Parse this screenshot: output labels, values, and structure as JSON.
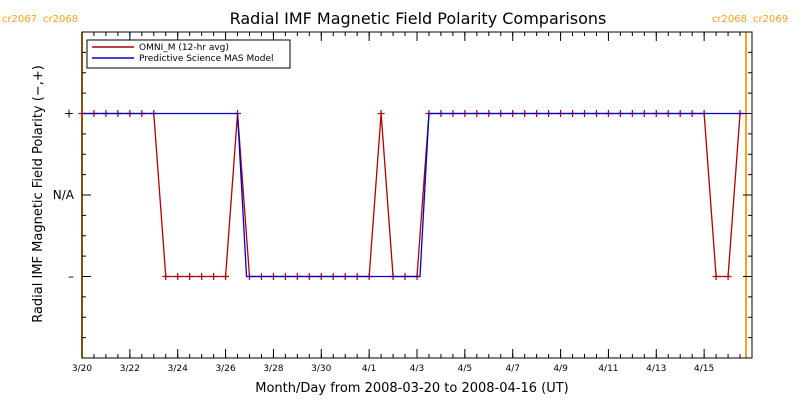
{
  "chart_data": {
    "type": "line",
    "title": "Radial IMF Magnetic Field Polarity Comparisons",
    "xlabel": "Month/Day from 2008-03-20 to 2008-04-16 (UT)",
    "ylabel": "Radial IMF Magnetic Field Polarity (−,+)",
    "xlim": [
      "2008-03-20",
      "2008-04-17"
    ],
    "x_ticks": [
      "2008-03-20",
      "2008-03-22",
      "2008-03-24",
      "2008-03-26",
      "2008-03-28",
      "2008-03-30",
      "2008-04-01",
      "2008-04-03",
      "2008-04-05",
      "2008-04-07",
      "2008-04-09",
      "2008-04-11",
      "2008-04-13",
      "2008-04-15"
    ],
    "x_tick_labels": [
      "3/20",
      "3/22",
      "3/24",
      "3/26",
      "3/28",
      "3/30",
      "4/1",
      "4/3",
      "4/5",
      "4/7",
      "4/9",
      "4/11",
      "4/13",
      "4/15"
    ],
    "y_ticks": [
      1,
      0,
      -1
    ],
    "y_tick_labels": [
      "+",
      "N/A",
      "–"
    ],
    "ylim": [
      -2,
      2
    ],
    "grid": false,
    "legend_position": "top-left",
    "carrington_markers": [
      {
        "date": "2008-03-20",
        "label_left": "cr2067",
        "label_right": "cr2068",
        "color": "#ffa020",
        "side": "left"
      },
      {
        "date": "2008-04-16T18:00",
        "label_left": "cr2068",
        "label_right": "cr2069",
        "color": "#ffa020",
        "side": "right"
      }
    ],
    "series": [
      {
        "name": "OMNI_M (12-hr avg)",
        "color": "#b00000",
        "markers": true,
        "x": [
          "2008-03-20T00:00",
          "2008-03-20T12:00",
          "2008-03-21T00:00",
          "2008-03-21T12:00",
          "2008-03-22T00:00",
          "2008-03-22T12:00",
          "2008-03-23T00:00",
          "2008-03-23T12:00",
          "2008-03-24T00:00",
          "2008-03-24T12:00",
          "2008-03-25T00:00",
          "2008-03-25T12:00",
          "2008-03-26T00:00",
          "2008-03-26T12:00",
          "2008-03-27T00:00",
          "2008-03-27T12:00",
          "2008-03-28T00:00",
          "2008-03-28T12:00",
          "2008-03-29T00:00",
          "2008-03-29T12:00",
          "2008-03-30T00:00",
          "2008-03-30T12:00",
          "2008-03-31T00:00",
          "2008-03-31T12:00",
          "2008-04-01T00:00",
          "2008-04-01T12:00",
          "2008-04-02T00:00",
          "2008-04-02T12:00",
          "2008-04-03T00:00",
          "2008-04-03T12:00",
          "2008-04-04T00:00",
          "2008-04-04T12:00",
          "2008-04-05T00:00",
          "2008-04-05T12:00",
          "2008-04-06T00:00",
          "2008-04-06T12:00",
          "2008-04-07T00:00",
          "2008-04-07T12:00",
          "2008-04-08T00:00",
          "2008-04-08T12:00",
          "2008-04-09T00:00",
          "2008-04-09T12:00",
          "2008-04-10T00:00",
          "2008-04-10T12:00",
          "2008-04-11T00:00",
          "2008-04-11T12:00",
          "2008-04-12T00:00",
          "2008-04-12T12:00",
          "2008-04-13T00:00",
          "2008-04-13T12:00",
          "2008-04-14T00:00",
          "2008-04-14T12:00",
          "2008-04-15T00:00",
          "2008-04-15T12:00",
          "2008-04-16T00:00",
          "2008-04-16T12:00"
        ],
        "y": [
          1,
          1,
          1,
          1,
          1,
          1,
          1,
          -1,
          -1,
          -1,
          -1,
          -1,
          -1,
          1,
          -1,
          -1,
          -1,
          -1,
          -1,
          -1,
          -1,
          -1,
          -1,
          -1,
          -1,
          1,
          -1,
          -1,
          -1,
          1,
          1,
          1,
          1,
          1,
          1,
          1,
          1,
          1,
          1,
          1,
          1,
          1,
          1,
          1,
          1,
          1,
          1,
          1,
          1,
          1,
          1,
          1,
          1,
          -1,
          -1,
          1
        ]
      },
      {
        "name": "Predictive Science MAS Model",
        "color": "#0000cc",
        "markers": false,
        "x": [
          "2008-03-20T00:00",
          "2008-03-26T12:00",
          "2008-03-26T21:00",
          "2008-04-03T03:00",
          "2008-04-03T12:00",
          "2008-04-16T18:00"
        ],
        "y": [
          1,
          1,
          -1,
          -1,
          1,
          1
        ]
      }
    ]
  }
}
